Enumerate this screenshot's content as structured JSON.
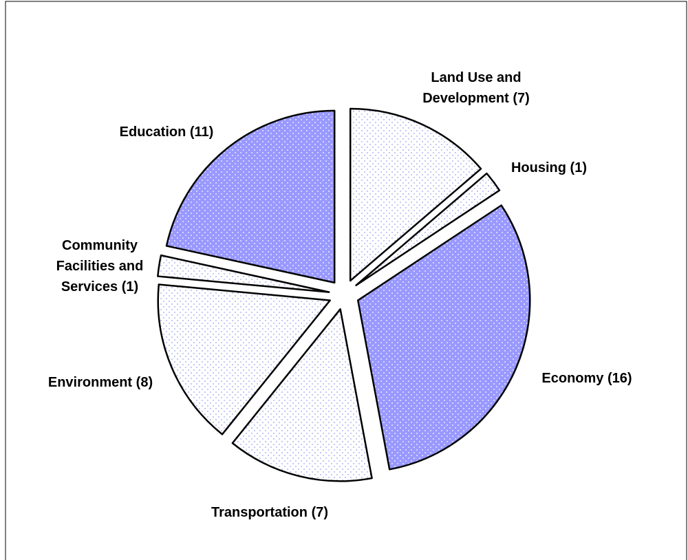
{
  "chart_data": {
    "type": "pie",
    "categories": [
      "Land Use and Development",
      "Housing",
      "Economy",
      "Transportation",
      "Environment",
      "Community Facilities and Services",
      "Education"
    ],
    "values": [
      7,
      1,
      16,
      7,
      8,
      1,
      11
    ],
    "value_labels": [
      "(7)",
      "(1)",
      "(16)",
      "(7)",
      "(8)",
      "(1)",
      "(11)"
    ],
    "colors": [
      "#ffffff",
      "#ffffff",
      "#9999ff",
      "#ffffff",
      "#ffffff",
      "#ffffff",
      "#9999ff"
    ]
  }
}
